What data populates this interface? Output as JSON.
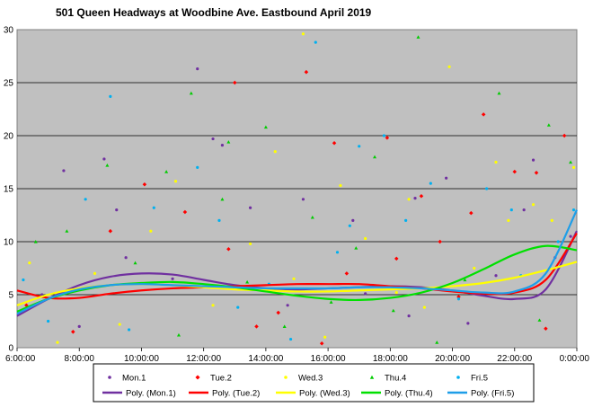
{
  "chart_data": {
    "type": "scatter",
    "title": "501 Queen Headways at Woodbine Ave. Eastbound April 2019",
    "xlabel": "",
    "ylabel": "",
    "x_ticks": [
      "6:00:00",
      "8:00:00",
      "10:00:00",
      "12:00:00",
      "14:00:00",
      "16:00:00",
      "18:00:00",
      "20:00:00",
      "22:00:00",
      "0:00:00"
    ],
    "y_ticks": [
      0,
      5,
      10,
      15,
      20,
      25,
      30
    ],
    "xlim_hours": [
      6,
      24
    ],
    "ylim": [
      0,
      30
    ],
    "grid": "horizontal",
    "plot_background": "#c0c0c0",
    "legend_position": "bottom",
    "series": [
      {
        "name": "Mon.1",
        "color": "#7030a0"
      },
      {
        "name": "Tue.2",
        "color": "#ff0000"
      },
      {
        "name": "Wed.3",
        "color": "#ffff00"
      },
      {
        "name": "Thu.4",
        "color": "#00cc00"
      },
      {
        "name": "Fri.5",
        "color": "#00b0f0"
      }
    ],
    "trendlines": [
      {
        "name": "Poly. (Mon.1)",
        "color": "#7030a0",
        "x_hours": [
          6,
          7,
          8,
          9,
          10,
          11,
          12,
          13,
          14,
          15,
          16,
          17,
          18,
          19,
          20,
          21,
          22,
          23,
          24
        ],
        "y": [
          3.0,
          4.6,
          5.9,
          6.7,
          7.0,
          6.9,
          6.4,
          5.9,
          5.6,
          5.5,
          5.6,
          5.7,
          5.8,
          5.7,
          5.4,
          4.9,
          4.6,
          5.5,
          11.0
        ]
      },
      {
        "name": "Poly. (Tue.2)",
        "color": "#ff0000",
        "x_hours": [
          6,
          7,
          8,
          9,
          10,
          11,
          12,
          13,
          14,
          15,
          16,
          17,
          18,
          19,
          20,
          21,
          22,
          23,
          24
        ],
        "y": [
          5.4,
          4.7,
          4.7,
          5.1,
          5.4,
          5.6,
          5.7,
          5.8,
          5.9,
          6.0,
          6.0,
          6.0,
          5.8,
          5.6,
          5.3,
          5.1,
          5.2,
          6.4,
          10.8
        ]
      },
      {
        "name": "Poly. (Wed.3)",
        "color": "#ffff00",
        "x_hours": [
          6,
          7,
          8,
          9,
          10,
          11,
          12,
          13,
          14,
          15,
          16,
          17,
          18,
          19,
          20,
          21,
          22,
          23,
          24
        ],
        "y": [
          4.0,
          5.0,
          5.6,
          5.9,
          6.0,
          5.9,
          5.7,
          5.5,
          5.4,
          5.3,
          5.3,
          5.4,
          5.5,
          5.6,
          5.8,
          6.1,
          6.6,
          7.3,
          8.1
        ]
      },
      {
        "name": "Poly. (Thu.4)",
        "color": "#00e000",
        "x_hours": [
          6,
          7,
          8,
          9,
          10,
          11,
          12,
          13,
          14,
          15,
          16,
          17,
          18,
          19,
          20,
          21,
          22,
          23,
          24
        ],
        "y": [
          3.4,
          4.6,
          5.4,
          5.9,
          6.1,
          6.2,
          6.0,
          5.7,
          5.3,
          4.9,
          4.6,
          4.5,
          4.7,
          5.2,
          6.1,
          7.4,
          8.8,
          9.6,
          9.2
        ]
      },
      {
        "name": "Poly. (Fri.5)",
        "color": "#1e9ee8",
        "x_hours": [
          6,
          7,
          8,
          9,
          10,
          11,
          12,
          13,
          14,
          15,
          16,
          17,
          18,
          19,
          20,
          21,
          22,
          23,
          24
        ],
        "y": [
          3.2,
          4.6,
          5.5,
          5.9,
          6.0,
          5.9,
          5.8,
          5.7,
          5.6,
          5.6,
          5.6,
          5.7,
          5.7,
          5.6,
          5.4,
          5.2,
          5.3,
          7.0,
          13.0
        ]
      }
    ],
    "points": {
      "Mon.1": {
        "x_hours": [
          7.5,
          8.8,
          9.2,
          11.8,
          12.3,
          12.6,
          15.2,
          16.8,
          18.8,
          19.8,
          22.3,
          22.6,
          6.8,
          8.0,
          9.5,
          11.0,
          13.5,
          14.7,
          17.2,
          18.6,
          20.5,
          21.4,
          23.3,
          23.8
        ],
        "y": [
          16.7,
          17.8,
          13.0,
          26.3,
          19.7,
          19.1,
          14.0,
          12.0,
          14.1,
          16.0,
          13.0,
          17.7,
          5.0,
          2.0,
          8.5,
          6.5,
          13.2,
          4.0,
          5.1,
          3.0,
          2.3,
          6.8,
          8.5,
          10.5
        ]
      },
      "Tue.2": {
        "x_hours": [
          13.0,
          15.3,
          16.2,
          17.9,
          19.0,
          21.0,
          22.7,
          23.6,
          6.3,
          7.8,
          10.1,
          11.4,
          12.8,
          14.4,
          16.6,
          18.2,
          19.6,
          20.6,
          22.0,
          23.0,
          9.0,
          13.7,
          15.8,
          20.2
        ],
        "y": [
          25.0,
          26.0,
          19.3,
          19.8,
          14.3,
          22.0,
          16.5,
          20.0,
          4.0,
          1.5,
          15.4,
          12.8,
          9.3,
          3.3,
          7.0,
          8.4,
          10.0,
          12.7,
          16.6,
          1.8,
          11.0,
          2.0,
          0.4,
          4.8
        ]
      },
      "Wed.3": {
        "x_hours": [
          14.3,
          15.2,
          19.9,
          21.4,
          21.8,
          16.4,
          18.6,
          8.5,
          10.3,
          12.3,
          13.5,
          17.2,
          18.2,
          20.7,
          22.6,
          23.9,
          6.4,
          7.3,
          9.3,
          11.1,
          14.9,
          15.9,
          19.1,
          23.2
        ],
        "y": [
          18.5,
          29.6,
          26.5,
          17.5,
          12.0,
          15.3,
          14.0,
          7.0,
          11.0,
          4.0,
          9.8,
          10.3,
          5.2,
          7.5,
          13.5,
          17.0,
          8.0,
          0.5,
          2.2,
          15.7,
          6.5,
          1.0,
          3.8,
          12.0
        ]
      },
      "Thu.4": {
        "x_hours": [
          11.6,
          12.8,
          14.0,
          18.9,
          17.5,
          21.5,
          23.1,
          23.8,
          10.8,
          12.6,
          13.4,
          14.6,
          6.6,
          7.6,
          8.9,
          15.5,
          16.1,
          18.1,
          19.5,
          20.4,
          22.8,
          9.8,
          11.2,
          16.9
        ],
        "y": [
          24.0,
          19.4,
          20.8,
          29.3,
          18.0,
          24.0,
          21.0,
          17.5,
          16.6,
          14.0,
          6.2,
          2.0,
          10.0,
          11.0,
          17.2,
          12.3,
          4.3,
          3.5,
          0.5,
          6.4,
          2.6,
          8.0,
          1.2,
          9.4
        ]
      },
      "Fri.5": {
        "x_hours": [
          9.0,
          11.8,
          15.6,
          17.0,
          17.8,
          18.5,
          21.1,
          21.9,
          23.4,
          23.9,
          7.0,
          8.2,
          10.4,
          12.5,
          14.1,
          14.8,
          16.3,
          19.3,
          20.2,
          22.2,
          6.2,
          9.6,
          13.1,
          16.7
        ],
        "y": [
          23.7,
          17.0,
          28.8,
          19.0,
          20.0,
          12.0,
          15.0,
          13.0,
          10.0,
          13.0,
          2.5,
          14.0,
          13.2,
          12.0,
          6.0,
          0.8,
          9.0,
          15.5,
          4.6,
          6.8,
          6.4,
          1.7,
          3.8,
          11.5
        ]
      }
    }
  }
}
